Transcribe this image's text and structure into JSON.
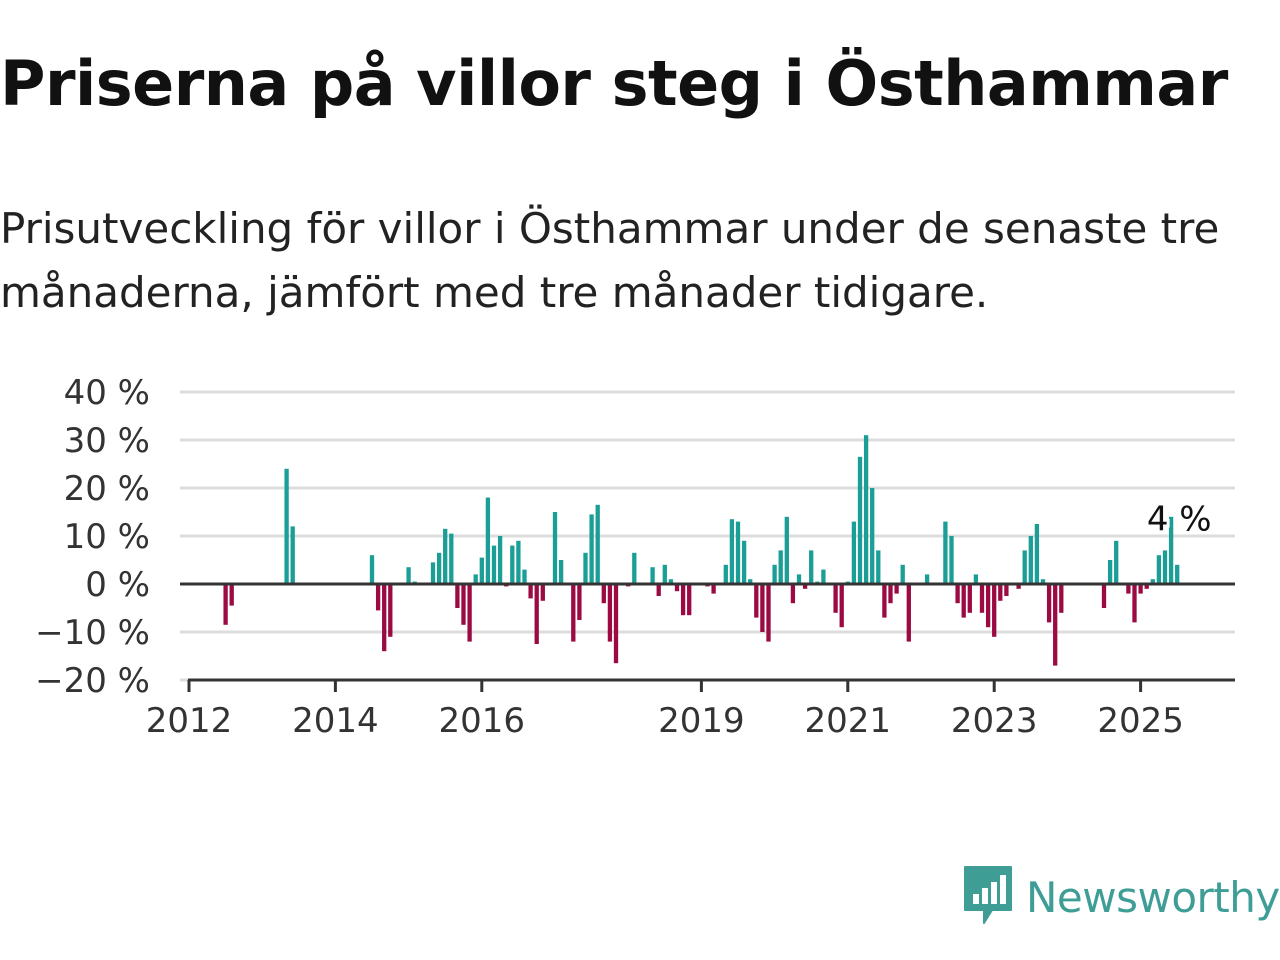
{
  "title": "Priserna på villor steg i Östhammar",
  "subtitle": "Prisutveckling för villor i Östhammar under de senaste tre månaderna, jämfört med tre månader tidigare.",
  "brand": {
    "name": "Newsworthy",
    "icon": "newsworthy-logo-icon",
    "color": "#3e9e96"
  },
  "colors": {
    "positive": "#1a9e96",
    "negative": "#9b0a42",
    "grid": "#dddddd",
    "axis": "#333333"
  },
  "chart_data": {
    "type": "bar",
    "ylabel_unit": "%",
    "ylim": [
      -20,
      40
    ],
    "yticks": [
      {
        "value": 40,
        "label": "40 %"
      },
      {
        "value": 30,
        "label": "30 %"
      },
      {
        "value": 20,
        "label": "20 %"
      },
      {
        "value": 10,
        "label": "10 %"
      },
      {
        "value": 0,
        "label": "0 %"
      },
      {
        "value": -10,
        "label": "−10 %"
      },
      {
        "value": -20,
        "label": "−20 %"
      }
    ],
    "xlim": [
      "2012-01",
      "2026-06"
    ],
    "xticks": [
      {
        "date": "2012-01",
        "label": "2012"
      },
      {
        "date": "2014-01",
        "label": "2014"
      },
      {
        "date": "2016-01",
        "label": "2016"
      },
      {
        "date": "2019-01",
        "label": "2019"
      },
      {
        "date": "2021-01",
        "label": "2021"
      },
      {
        "date": "2023-01",
        "label": "2023"
      },
      {
        "date": "2025-01",
        "label": "2025"
      }
    ],
    "grid": true,
    "last_value_label": "4 %",
    "series": [
      {
        "points": [
          [
            "2012-07",
            -8.5
          ],
          [
            "2012-08",
            -4.5
          ],
          [
            "2013-05",
            24
          ],
          [
            "2013-06",
            12
          ],
          [
            "2014-07",
            6
          ],
          [
            "2014-08",
            -5.5
          ],
          [
            "2014-09",
            -14
          ],
          [
            "2014-10",
            -11
          ],
          [
            "2015-01",
            3.5
          ],
          [
            "2015-02",
            0.5
          ],
          [
            "2015-05",
            4.5
          ],
          [
            "2015-06",
            6.5
          ],
          [
            "2015-07",
            11.5
          ],
          [
            "2015-08",
            10.5
          ],
          [
            "2015-09",
            -5
          ],
          [
            "2015-10",
            -8.5
          ],
          [
            "2015-11",
            -12
          ],
          [
            "2015-12",
            2
          ],
          [
            "2016-01",
            5.5
          ],
          [
            "2016-02",
            18
          ],
          [
            "2016-03",
            8
          ],
          [
            "2016-04",
            10
          ],
          [
            "2016-05",
            -0.5
          ],
          [
            "2016-06",
            8
          ],
          [
            "2016-07",
            9
          ],
          [
            "2016-08",
            3
          ],
          [
            "2016-09",
            -3
          ],
          [
            "2016-10",
            -12.5
          ],
          [
            "2016-11",
            -3.5
          ],
          [
            "2017-01",
            15
          ],
          [
            "2017-02",
            5
          ],
          [
            "2017-04",
            -12
          ],
          [
            "2017-05",
            -7.5
          ],
          [
            "2017-06",
            6.5
          ],
          [
            "2017-07",
            14.5
          ],
          [
            "2017-08",
            16.5
          ],
          [
            "2017-09",
            -4
          ],
          [
            "2017-10",
            -12
          ],
          [
            "2017-11",
            -16.5
          ],
          [
            "2018-01",
            -0.5
          ],
          [
            "2018-02",
            6.5
          ],
          [
            "2018-05",
            3.5
          ],
          [
            "2018-06",
            -2.5
          ],
          [
            "2018-07",
            4
          ],
          [
            "2018-08",
            1
          ],
          [
            "2018-09",
            -1.5
          ],
          [
            "2018-10",
            -6.5
          ],
          [
            "2018-11",
            -6.5
          ],
          [
            "2019-02",
            -0.5
          ],
          [
            "2019-03",
            -2
          ],
          [
            "2019-05",
            4
          ],
          [
            "2019-06",
            13.5
          ],
          [
            "2019-07",
            13
          ],
          [
            "2019-08",
            9
          ],
          [
            "2019-09",
            1
          ],
          [
            "2019-10",
            -7
          ],
          [
            "2019-11",
            -10
          ],
          [
            "2019-12",
            -12
          ],
          [
            "2020-01",
            4
          ],
          [
            "2020-02",
            7
          ],
          [
            "2020-03",
            14
          ],
          [
            "2020-04",
            -4
          ],
          [
            "2020-05",
            2
          ],
          [
            "2020-06",
            -1
          ],
          [
            "2020-07",
            7
          ],
          [
            "2020-08",
            0.5
          ],
          [
            "2020-09",
            3
          ],
          [
            "2020-11",
            -6
          ],
          [
            "2020-12",
            -9
          ],
          [
            "2021-01",
            0.5
          ],
          [
            "2021-02",
            13
          ],
          [
            "2021-03",
            26.5
          ],
          [
            "2021-04",
            31
          ],
          [
            "2021-05",
            20
          ],
          [
            "2021-06",
            7
          ],
          [
            "2021-07",
            -7
          ],
          [
            "2021-08",
            -4
          ],
          [
            "2021-09",
            -2
          ],
          [
            "2021-10",
            4
          ],
          [
            "2021-11",
            -12
          ],
          [
            "2022-02",
            2
          ],
          [
            "2022-05",
            13
          ],
          [
            "2022-06",
            10
          ],
          [
            "2022-07",
            -4
          ],
          [
            "2022-08",
            -7
          ],
          [
            "2022-09",
            -6
          ],
          [
            "2022-10",
            2
          ],
          [
            "2022-11",
            -6
          ],
          [
            "2022-12",
            -9
          ],
          [
            "2023-01",
            -11
          ],
          [
            "2023-02",
            -3.5
          ],
          [
            "2023-03",
            -2.5
          ],
          [
            "2023-05",
            -1
          ],
          [
            "2023-06",
            7
          ],
          [
            "2023-07",
            10
          ],
          [
            "2023-08",
            12.5
          ],
          [
            "2023-09",
            1
          ],
          [
            "2023-10",
            -8
          ],
          [
            "2023-11",
            -17
          ],
          [
            "2023-12",
            -6
          ],
          [
            "2024-07",
            -5
          ],
          [
            "2024-08",
            5
          ],
          [
            "2024-09",
            9
          ],
          [
            "2024-11",
            -2
          ],
          [
            "2024-12",
            -8
          ],
          [
            "2025-01",
            -2
          ],
          [
            "2025-02",
            -1
          ],
          [
            "2025-03",
            1
          ],
          [
            "2025-04",
            6
          ],
          [
            "2025-05",
            7
          ],
          [
            "2025-06",
            14
          ],
          [
            "2025-07",
            4
          ]
        ]
      }
    ]
  }
}
